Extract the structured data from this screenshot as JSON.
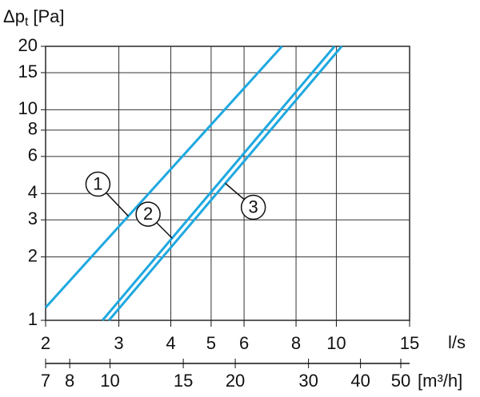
{
  "chart_data": {
    "type": "line",
    "y_label": {
      "symbol": "Δp",
      "subscript": "t",
      "unit": "[Pa]"
    },
    "x_label": "l/s",
    "x2_label": "[m³/h]",
    "xlim": [
      2,
      15
    ],
    "xticks": [
      2,
      3,
      4,
      5,
      6,
      8,
      10,
      15
    ],
    "x2lim": [
      7,
      52.5
    ],
    "x2ticks": [
      7,
      8,
      10,
      15,
      20,
      30,
      40,
      50
    ],
    "ylim": [
      1,
      20
    ],
    "yticks": [
      1,
      2,
      3,
      4,
      6,
      8,
      10,
      15,
      20
    ],
    "log_x": true,
    "log_y": true,
    "grid": true,
    "series": [
      {
        "name": "1",
        "color": "#1ea8e0",
        "x": [
          2,
          7.4
        ],
        "values": [
          1.15,
          20
        ]
      },
      {
        "name": "2",
        "color": "#1ea8e0",
        "x": [
          2.74,
          9.9
        ],
        "values": [
          1,
          20
        ]
      },
      {
        "name": "3",
        "color": "#1ea8e0",
        "x": [
          2.84,
          10.3
        ],
        "values": [
          1,
          20
        ]
      }
    ]
  }
}
